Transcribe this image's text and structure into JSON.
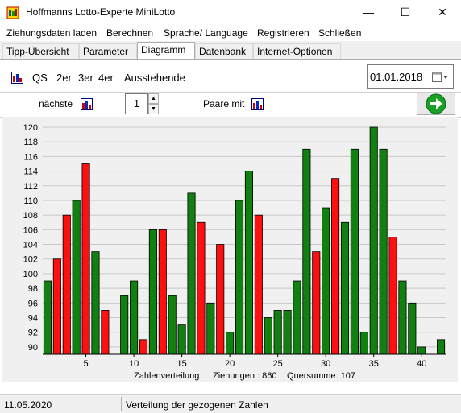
{
  "window": {
    "title": "Hoffmanns Lotto-Experte MiniLotto",
    "minimize": "—",
    "maximize": "☐",
    "close": "✕"
  },
  "menu": [
    "Ziehungsdaten laden",
    "Berechnen",
    "Sprache/ Language",
    "Registrieren",
    "Schließen"
  ],
  "tabs": [
    "Tipp-Übersicht",
    "Parameter",
    "Diagramm",
    "Datenbank",
    "Internet-Optionen"
  ],
  "active_tab": "Diagramm",
  "toolbar": {
    "qs": "QS",
    "twoer": "2er",
    "threeer": "3er",
    "fourer": "4er",
    "pending": "Ausstehende",
    "date": "01.01.2018"
  },
  "row2": {
    "next_label": "nächste",
    "spin_value": "1",
    "pairs_label": "Paare mit"
  },
  "colors": {
    "green": "#108010",
    "red": "#ff1010",
    "grid": "#c8c8c8"
  },
  "chart_data": {
    "type": "bar",
    "categories": [
      1,
      2,
      3,
      4,
      5,
      6,
      7,
      8,
      9,
      10,
      11,
      12,
      13,
      14,
      15,
      16,
      17,
      18,
      19,
      20,
      21,
      22,
      23,
      24,
      25,
      26,
      27,
      28,
      29,
      30,
      31,
      32,
      33,
      34,
      35,
      36,
      37,
      38,
      39,
      40,
      41,
      42
    ],
    "values": [
      99,
      102,
      108,
      110,
      115,
      103,
      95,
      89,
      97,
      99,
      91,
      106,
      106,
      97,
      93,
      111,
      107,
      96,
      104,
      92,
      110,
      114,
      108,
      94,
      95,
      95,
      99,
      117,
      103,
      109,
      113,
      107,
      117,
      92,
      120,
      117,
      105,
      99,
      96,
      90,
      89,
      91
    ],
    "colors": [
      "green",
      "red",
      "red",
      "green",
      "red",
      "green",
      "red",
      "green",
      "green",
      "green",
      "red",
      "green",
      "red",
      "green",
      "green",
      "green",
      "red",
      "green",
      "red",
      "green",
      "green",
      "green",
      "red",
      "green",
      "green",
      "green",
      "green",
      "green",
      "red",
      "green",
      "red",
      "green",
      "green",
      "green",
      "green",
      "green",
      "red",
      "green",
      "green",
      "green",
      "red",
      "green"
    ],
    "ylim": [
      89,
      120
    ],
    "yticks": [
      90,
      92,
      94,
      96,
      98,
      100,
      102,
      104,
      106,
      108,
      110,
      112,
      114,
      116,
      118,
      120
    ],
    "xticks": [
      5,
      10,
      15,
      20,
      25,
      30,
      35,
      40
    ],
    "caption_left": "Zahlenverteilung",
    "caption_mid": "Ziehungen : 860",
    "caption_right": "Quersumme: 107",
    "grid": true
  },
  "status": {
    "date": "11.05.2020",
    "message": "Verteilung der gezogenen Zahlen"
  }
}
